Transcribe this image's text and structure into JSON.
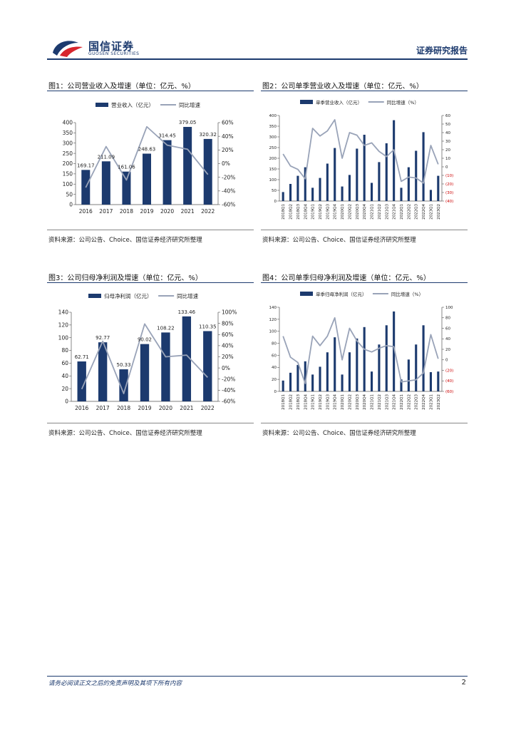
{
  "header": {
    "logo_cn": "国信证券",
    "logo_en": "GUOSEN SECURITIES",
    "report_type": "证券研究报告"
  },
  "colors": {
    "bar": "#1c3a6e",
    "line": "#99a3b8",
    "neg_tick": "#cc0000"
  },
  "figures": [
    {
      "title": "图1：公司营业收入及增速（单位：亿元、%）",
      "source": "资料来源：公司公告、Choice、国信证券经济研究所整理"
    },
    {
      "title": "图2：公司单季营业收入及增速（单位：亿元、%）",
      "source": "资料来源：公司公告、Choice、国信证券经济研究所整理"
    },
    {
      "title": "图3：公司归母净利润及增速（单位：亿元、%）",
      "source": "资料来源：公司公告、Choice、国信证券经济研究所整理"
    },
    {
      "title": "图4：公司单季归母净利润及增速（单位：亿元、%）",
      "source": "资料来源：公司公告、Choice、国信证券经济研究所整理"
    }
  ],
  "chart_data": [
    {
      "type": "bar",
      "categories": [
        "2016",
        "2017",
        "2018",
        "2019",
        "2020",
        "2021",
        "2022"
      ],
      "series": [
        {
          "name": "营业收入（亿元）",
          "kind": "bar",
          "axis": "left",
          "values": [
            169.17,
            211.09,
            161.06,
            248.63,
            314.45,
            379.05,
            320.32
          ],
          "labels": [
            "169.17",
            "211.09",
            "161.06",
            "248.63",
            "314.45",
            "379.05",
            "320.32"
          ]
        },
        {
          "name": "同比增速",
          "kind": "line",
          "axis": "right",
          "values": [
            -35,
            25,
            -24,
            54,
            27,
            21,
            -16
          ]
        }
      ],
      "y_left": {
        "min": 0,
        "max": 400,
        "ticks": [
          "0",
          "50",
          "100",
          "150",
          "200",
          "250",
          "300",
          "350",
          "400"
        ]
      },
      "y_right": {
        "min": -60,
        "max": 60,
        "ticks": [
          "-60%",
          "-40%",
          "-20%",
          "0%",
          "20%",
          "40%",
          "60%"
        ]
      },
      "legend": "top"
    },
    {
      "type": "bar",
      "categories": [
        "2018Q1",
        "2018Q2",
        "2018Q3",
        "2018Q4",
        "2019Q1",
        "2019Q2",
        "2019Q3",
        "2019Q4",
        "2020Q1",
        "2020Q2",
        "2020Q3",
        "2020Q4",
        "2021Q1",
        "2021Q2",
        "2021Q3",
        "2021Q4",
        "2022Q1",
        "2022Q2",
        "2022Q3",
        "2022Q4",
        "2023Q1",
        "2023Q2"
      ],
      "series": [
        {
          "name": "单季营业收入（亿元）",
          "kind": "bar",
          "axis": "left",
          "values": [
            42,
            80,
            118,
            158,
            62,
            108,
            175,
            248,
            68,
            122,
            245,
            310,
            85,
            182,
            270,
            378,
            62,
            158,
            235,
            322,
            52,
            118
          ]
        },
        {
          "name": "同比增速（%）",
          "kind": "line",
          "axis": "right",
          "values": [
            15,
            1,
            -3,
            -14,
            45,
            36,
            42,
            55,
            10,
            40,
            37,
            25,
            28,
            18,
            12,
            20,
            -17,
            -12,
            -13,
            -19,
            25,
            3
          ]
        }
      ],
      "y_left": {
        "min": 0,
        "max": 400,
        "ticks": [
          "0",
          "50",
          "100",
          "150",
          "200",
          "250",
          "300",
          "350",
          "400"
        ]
      },
      "y_right": {
        "min": -40,
        "max": 60,
        "ticks": [
          "(40)",
          "(30)",
          "(20)",
          "(10)",
          "0",
          "10",
          "20",
          "30",
          "40",
          "50",
          "60"
        ]
      },
      "legend": "top"
    },
    {
      "type": "bar",
      "categories": [
        "2016",
        "2017",
        "2018",
        "2019",
        "2020",
        "2021",
        "2022"
      ],
      "series": [
        {
          "name": "归母净利润（亿元）",
          "kind": "bar",
          "axis": "left",
          "values": [
            62.71,
            92.77,
            50.33,
            90.02,
            108.22,
            133.46,
            110.35
          ],
          "labels": [
            "62.71",
            "92.77",
            "50.33",
            "90.02",
            "108.22",
            "133.46",
            "110.35"
          ]
        },
        {
          "name": "同比增速",
          "kind": "line",
          "axis": "right",
          "values": [
            -38,
            48,
            -46,
            79,
            20,
            23,
            -17
          ]
        }
      ],
      "y_left": {
        "min": 0,
        "max": 140,
        "ticks": [
          "0",
          "20",
          "40",
          "60",
          "80",
          "100",
          "120",
          "140"
        ]
      },
      "y_right": {
        "min": -60,
        "max": 100,
        "ticks": [
          "-60%",
          "-40%",
          "-20%",
          "0%",
          "20%",
          "40%",
          "60%",
          "80%",
          "100%"
        ]
      },
      "legend": "top"
    },
    {
      "type": "bar",
      "categories": [
        "2018Q1",
        "2018Q2",
        "2018Q3",
        "2018Q4",
        "2019Q1",
        "2019Q2",
        "2019Q3",
        "2019Q4",
        "2020Q1",
        "2020Q2",
        "2020Q3",
        "2020Q4",
        "2021Q1",
        "2021Q2",
        "2021Q3",
        "2021Q4",
        "2022Q1",
        "2022Q2",
        "2022Q3",
        "2022Q4",
        "2023Q1",
        "2023Q2"
      ],
      "series": [
        {
          "name": "单季归母净利润（亿元）",
          "kind": "bar",
          "axis": "left",
          "values": [
            18,
            31,
            44,
            50,
            28,
            41,
            65,
            90,
            28,
            65,
            88,
            107,
            33,
            78,
            110,
            133,
            20,
            53,
            78,
            110,
            32,
            33
          ]
        },
        {
          "name": "同比增速（%）",
          "kind": "line",
          "axis": "right",
          "values": [
            45,
            5,
            -5,
            -45,
            45,
            27,
            45,
            80,
            0,
            60,
            36,
            20,
            15,
            22,
            27,
            25,
            -42,
            -40,
            -38,
            -25,
            48,
            2
          ]
        }
      ],
      "y_left": {
        "min": 0,
        "max": 140,
        "ticks": [
          "0",
          "20",
          "40",
          "60",
          "80",
          "100",
          "120",
          "140"
        ]
      },
      "y_right": {
        "min": -60,
        "max": 100,
        "ticks": [
          "(60)",
          "(40)",
          "(20)",
          "0",
          "20",
          "40",
          "60",
          "80",
          "100"
        ]
      },
      "legend": "top"
    }
  ],
  "footer": {
    "disclaimer": "请务必阅读正文之后的免责声明及其项下所有内容",
    "page": "2"
  }
}
